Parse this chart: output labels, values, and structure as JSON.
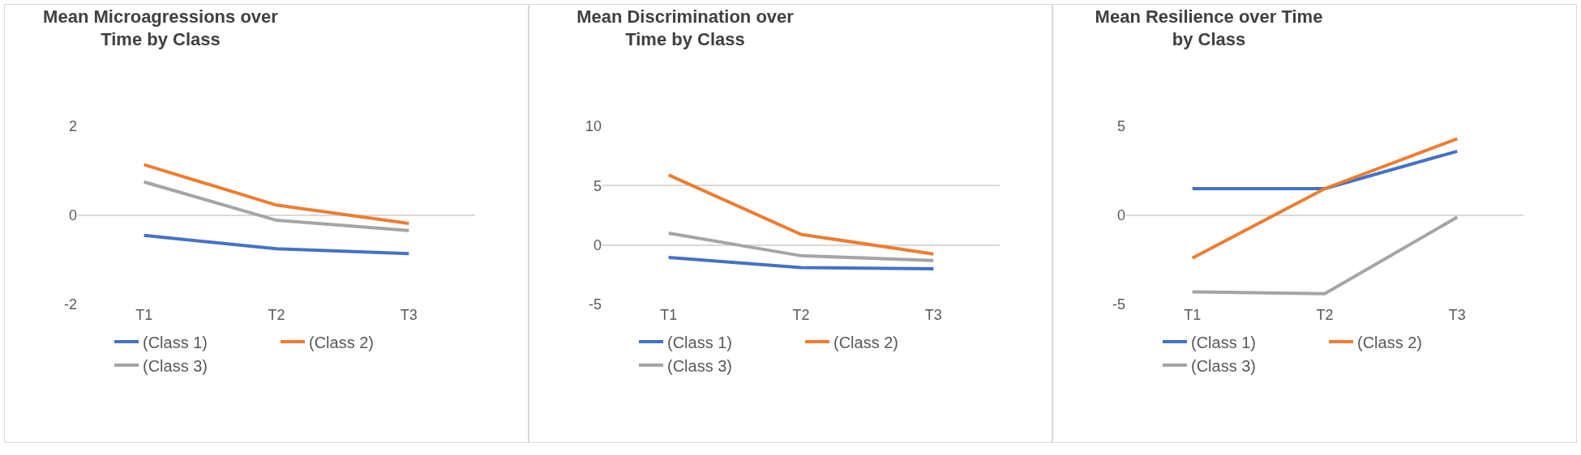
{
  "chart_data": [
    {
      "type": "line",
      "title": "Mean Microagressions over Time by Class",
      "categories": [
        "T1",
        "T2",
        "T3"
      ],
      "ylim": [
        -2,
        2
      ],
      "yticks": [
        -2,
        0,
        2
      ],
      "grid": "y",
      "legend": "bottom",
      "marker": "none",
      "series": [
        {
          "name": "(Class 1)",
          "color": "#4472c4",
          "values": [
            -0.45,
            -0.75,
            -0.86
          ]
        },
        {
          "name": "(Class 2)",
          "color": "#ed7d31",
          "values": [
            1.14,
            0.23,
            -0.18
          ]
        },
        {
          "name": "(Class 3)",
          "color": "#a5a5a5",
          "values": [
            0.75,
            -0.11,
            -0.34
          ]
        }
      ]
    },
    {
      "type": "line",
      "title": "Mean Discrimination over Time by Class",
      "categories": [
        "T1",
        "T2",
        "T3"
      ],
      "ylim": [
        -5,
        10
      ],
      "yticks": [
        -5,
        0,
        5,
        10
      ],
      "grid": "y",
      "legend": "bottom",
      "marker": "none",
      "series": [
        {
          "name": "(Class 1)",
          "color": "#4472c4",
          "values": [
            -1.05,
            -1.9,
            -2.0
          ]
        },
        {
          "name": "(Class 2)",
          "color": "#ed7d31",
          "values": [
            5.9,
            0.9,
            -0.75
          ]
        },
        {
          "name": "(Class 3)",
          "color": "#a5a5a5",
          "values": [
            1.0,
            -0.9,
            -1.3
          ]
        }
      ]
    },
    {
      "type": "line",
      "title": "Mean Resilience over Time by Class",
      "categories": [
        "T1",
        "T2",
        "T3"
      ],
      "ylim": [
        -5,
        5
      ],
      "yticks": [
        -5,
        0,
        5
      ],
      "grid": "y",
      "legend": "bottom",
      "marker": "none",
      "series": [
        {
          "name": "(Class 1)",
          "color": "#4472c4",
          "values": [
            1.5,
            1.5,
            3.6
          ]
        },
        {
          "name": "(Class 2)",
          "color": "#ed7d31",
          "values": [
            -2.4,
            1.5,
            4.3
          ]
        },
        {
          "name": "(Class 3)",
          "color": "#a5a5a5",
          "values": [
            -4.3,
            -4.4,
            -0.1
          ]
        }
      ]
    }
  ]
}
